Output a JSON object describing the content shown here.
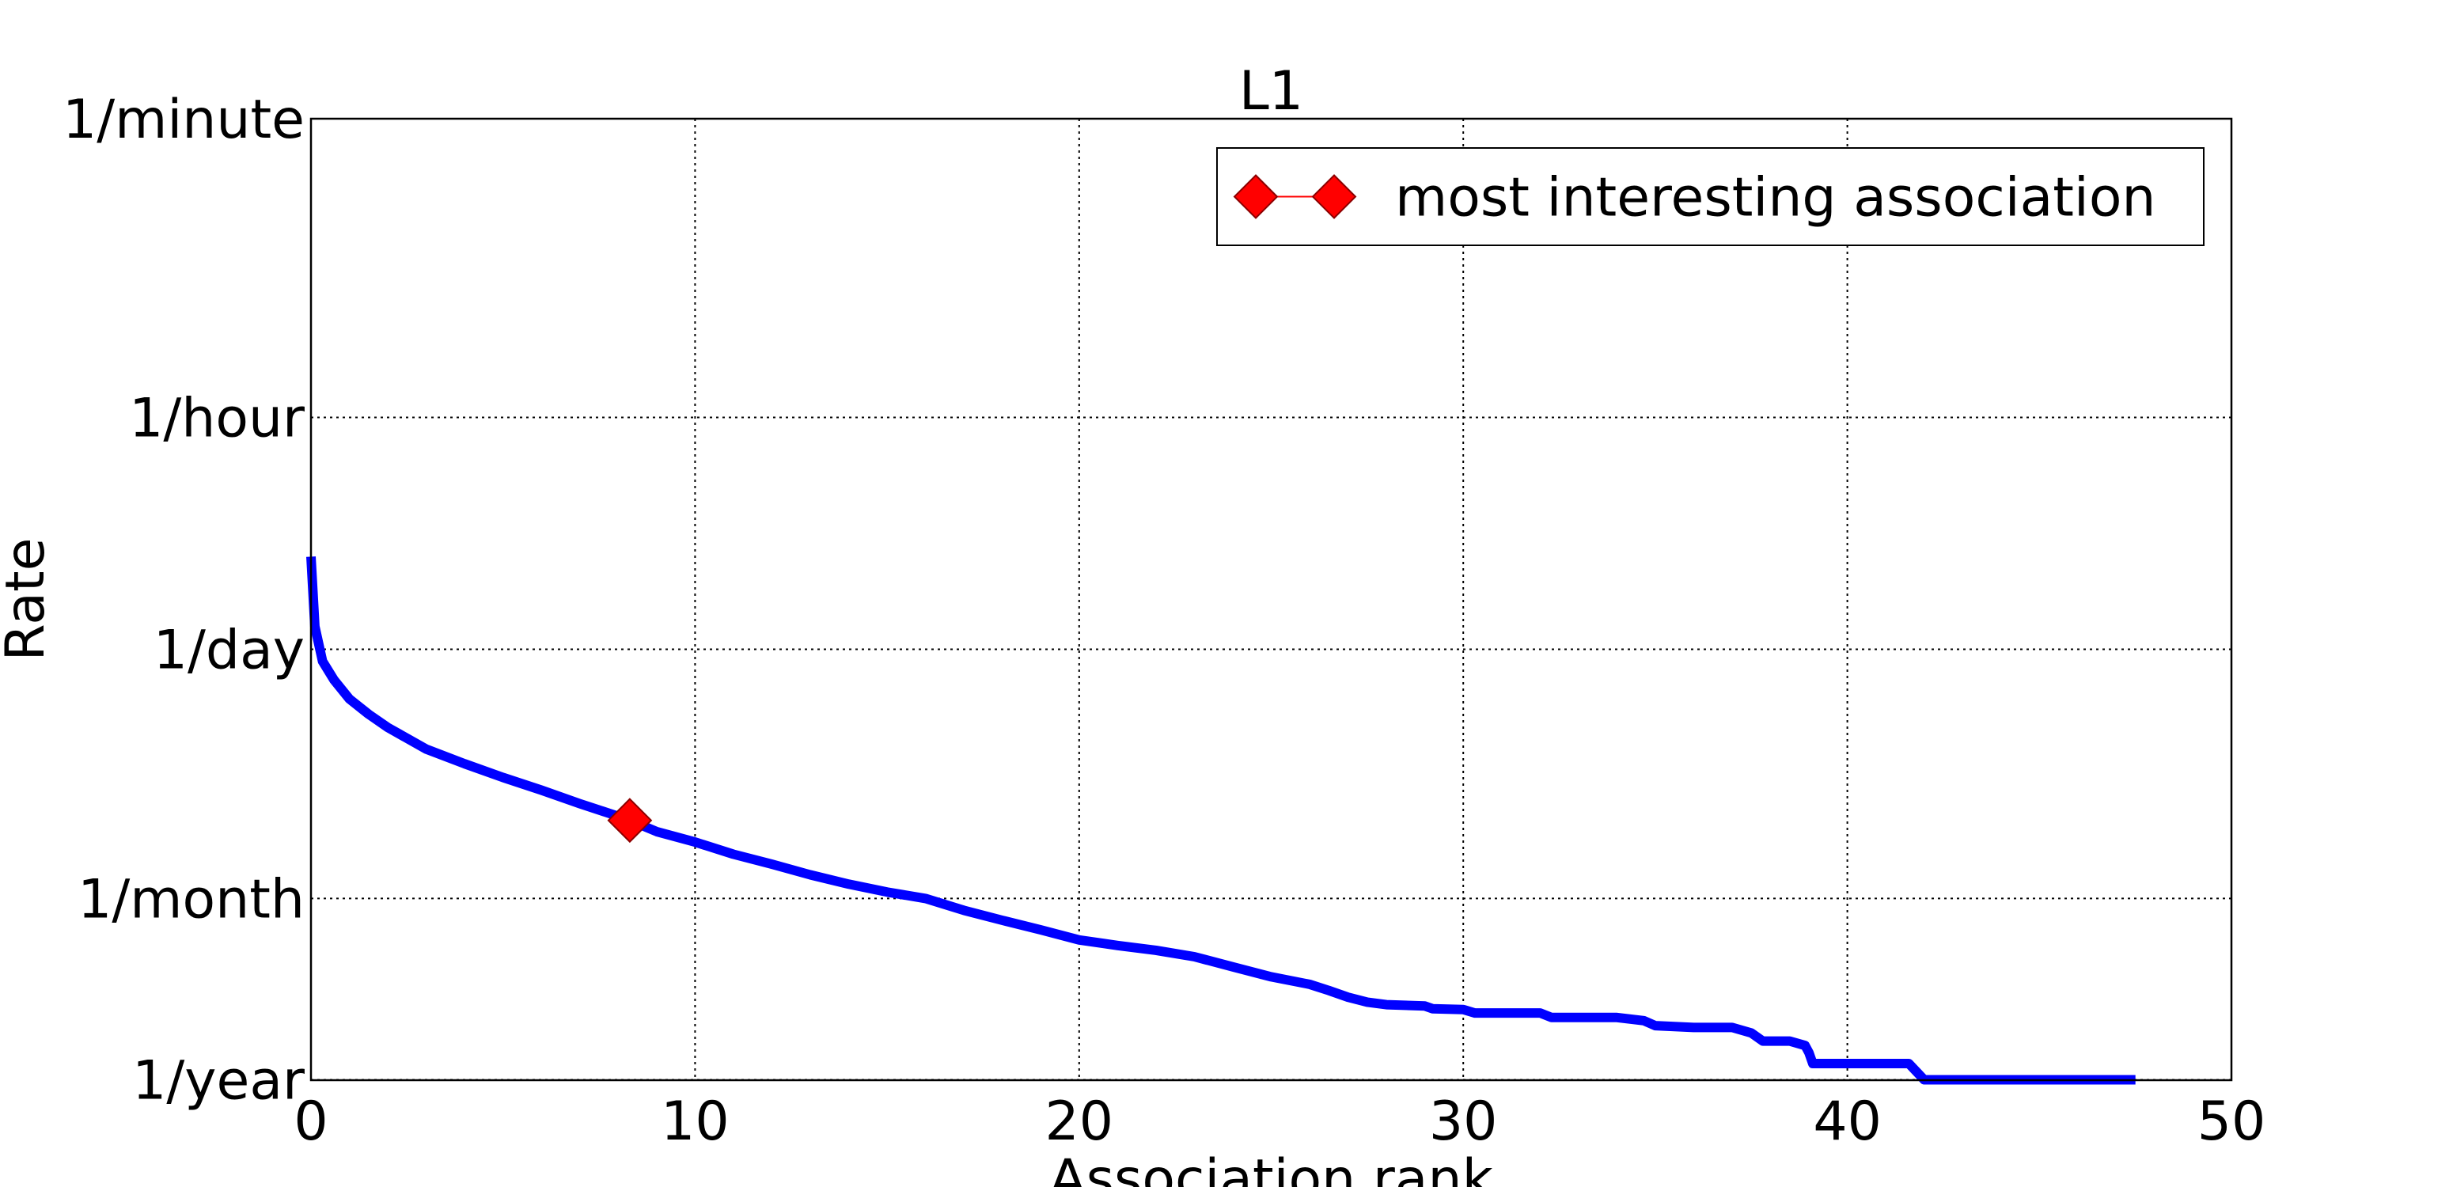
{
  "chart_data": {
    "type": "line",
    "title": "L1",
    "xlabel": "Association rank",
    "ylabel": "Rate",
    "xlim": [
      0,
      50
    ],
    "x_ticks": [
      0,
      10,
      20,
      30,
      40,
      50
    ],
    "y_scale": "log",
    "y_unit": "events per year",
    "ylim": [
      0.995,
      525600
    ],
    "y_ticks": [
      {
        "label": "1/minute",
        "value": 525600
      },
      {
        "label": "1/hour",
        "value": 8760
      },
      {
        "label": "1/day",
        "value": 365
      },
      {
        "label": "1/month",
        "value": 12
      },
      {
        "label": "1/year",
        "value": 1
      }
    ],
    "grid": true,
    "legend_position": "top-right",
    "colors": {
      "series": "#0000ff",
      "marker": "#ff0000",
      "marker_edge": "#8b0000"
    },
    "series": [
      {
        "type": "line",
        "x": [
          0.0,
          0.1,
          0.3,
          0.6,
          1.0,
          1.5,
          2.0,
          3.0,
          4.0,
          5.0,
          6.0,
          7.0,
          8.0,
          8.3,
          9.0,
          10.0,
          11.0,
          12.0,
          13.0,
          14.0,
          15.0,
          16.0,
          17.0,
          18.0,
          19.0,
          20.0,
          21.0,
          22.0,
          23.0,
          24.0,
          25.0,
          26.0,
          26.5,
          27.0,
          27.5,
          28.0,
          29.0,
          29.2,
          30.0,
          30.3,
          31.0,
          32.0,
          32.3,
          34.0,
          34.7,
          35.0,
          36.0,
          37.0,
          37.5,
          37.8,
          38.5,
          38.9,
          39.0,
          39.1,
          40.0,
          41.0,
          41.6,
          42.0,
          45.0,
          47.5
        ],
        "y": [
          1300,
          500,
          310,
          240,
          185,
          150,
          125,
          93,
          76,
          63,
          53,
          44,
          37,
          35,
          30,
          26,
          22,
          19.2,
          16.6,
          14.6,
          13.1,
          12.0,
          10.2,
          8.9,
          7.8,
          6.8,
          6.3,
          5.9,
          5.4,
          4.7,
          4.1,
          3.7,
          3.4,
          3.1,
          2.9,
          2.8,
          2.75,
          2.65,
          2.62,
          2.5,
          2.5,
          2.5,
          2.35,
          2.35,
          2.25,
          2.1,
          2.05,
          2.05,
          1.9,
          1.7,
          1.7,
          1.6,
          1.45,
          1.25,
          1.25,
          1.25,
          1.25,
          1.0,
          1.0,
          1.0
        ]
      },
      {
        "type": "scatter",
        "name": "most interesting association",
        "x": [
          8.3
        ],
        "y": [
          35
        ],
        "marker": "diamond"
      }
    ]
  }
}
